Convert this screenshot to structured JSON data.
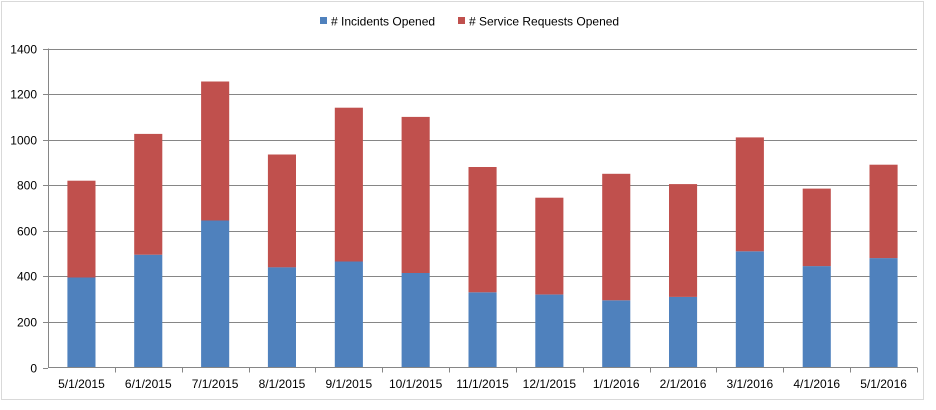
{
  "chart_data": {
    "type": "bar",
    "stacked": true,
    "categories": [
      "5/1/2015",
      "6/1/2015",
      "7/1/2015",
      "8/1/2015",
      "9/1/2015",
      "10/1/2015",
      "11/1/2015",
      "12/1/2015",
      "1/1/2016",
      "2/1/2016",
      "3/1/2016",
      "4/1/2016",
      "5/1/2016"
    ],
    "series": [
      {
        "name": "# Incidents Opened",
        "color": "#4f81bd",
        "values": [
          395,
          495,
          645,
          440,
          465,
          415,
          330,
          320,
          295,
          310,
          510,
          445,
          480
        ]
      },
      {
        "name": "# Service Requests Opened",
        "color": "#c0504d",
        "values": [
          425,
          530,
          610,
          495,
          675,
          685,
          550,
          425,
          555,
          495,
          500,
          340,
          410
        ]
      }
    ],
    "ylim": [
      0,
      1400
    ],
    "yticks": [
      "0",
      "200",
      "400",
      "600",
      "800",
      "1000",
      "1200",
      "1400"
    ],
    "grid": true,
    "legend_position": "top-center"
  }
}
